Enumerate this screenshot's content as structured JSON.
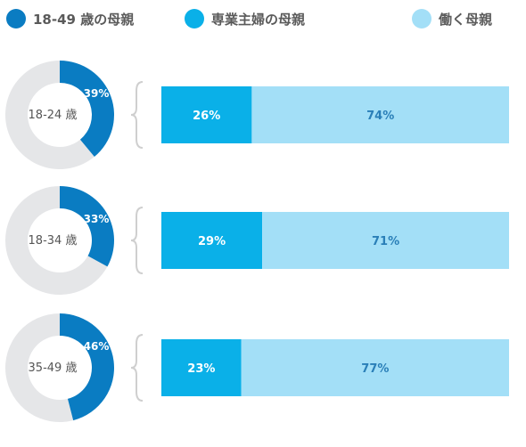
{
  "colors": {
    "mothers_18_49": "#0a7cc2",
    "stay_at_home": "#0ab0e8",
    "working": "#a3dff7",
    "donut_remainder": "#e5e6e8",
    "label_dark": "#555555",
    "bracket": "#cfcfcf"
  },
  "legend": [
    {
      "label": "18-49 歳の母親",
      "color": "#0a7cc2"
    },
    {
      "label": "専業主婦の母親",
      "color": "#0ab0e8"
    },
    {
      "label": "働く母親",
      "color": "#a3dff7"
    }
  ],
  "chart_data": {
    "type": "bar",
    "description_type": "donut + 100% stacked horizontal bar per age group",
    "categories": [
      "18-24 歳",
      "18-34 歳",
      "35-49 歳"
    ],
    "donut_values": [
      39,
      33,
      46
    ],
    "donut_labels": [
      "39%",
      "33%",
      "46%"
    ],
    "series": [
      {
        "name": "専業主婦の母親",
        "values": [
          26,
          29,
          23
        ],
        "labels": [
          "26%",
          "29%",
          "23%"
        ]
      },
      {
        "name": "働く母親",
        "values": [
          74,
          71,
          77
        ],
        "labels": [
          "74%",
          "71%",
          "77%"
        ]
      }
    ],
    "xlim": [
      0,
      100
    ]
  }
}
